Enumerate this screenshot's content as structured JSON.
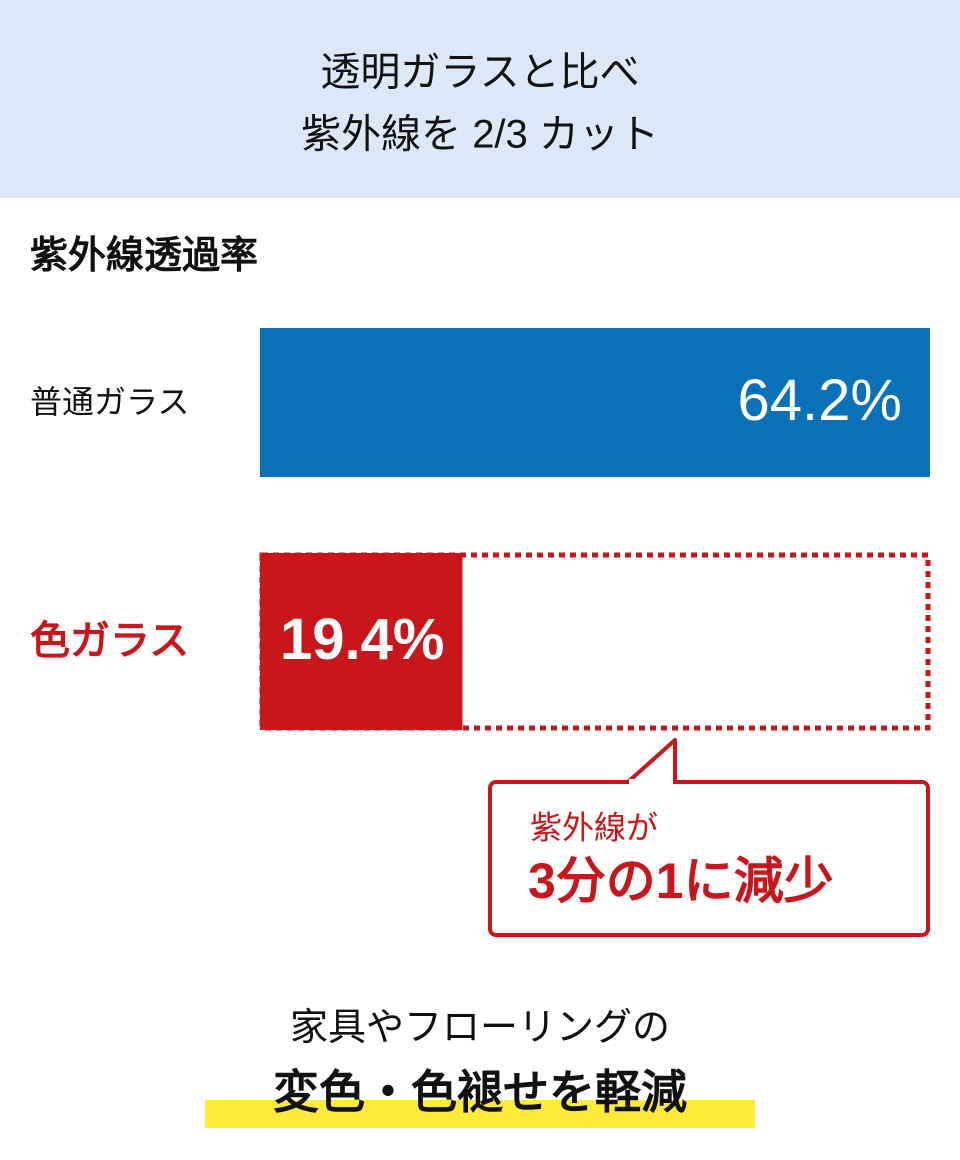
{
  "header": {
    "lines": [
      "透明ガラスと比べ",
      "紫外線を 2/3 カット"
    ]
  },
  "chart_data": {
    "type": "bar",
    "orientation": "horizontal",
    "title": "紫外線透過率",
    "categories": [
      "普通ガラス",
      "色ガラス"
    ],
    "values": [
      64.2,
      19.4
    ],
    "value_labels": [
      "64.2%",
      "19.4%"
    ],
    "colors": [
      "#0a70b8",
      "#c8161a"
    ],
    "xlim": [
      0,
      64.2
    ]
  },
  "callout": {
    "lines": [
      "紫外線が",
      "3分の1に減少"
    ]
  },
  "footer": {
    "lines": [
      "家具やフローリングの",
      "変色・色褪せを軽減"
    ]
  }
}
